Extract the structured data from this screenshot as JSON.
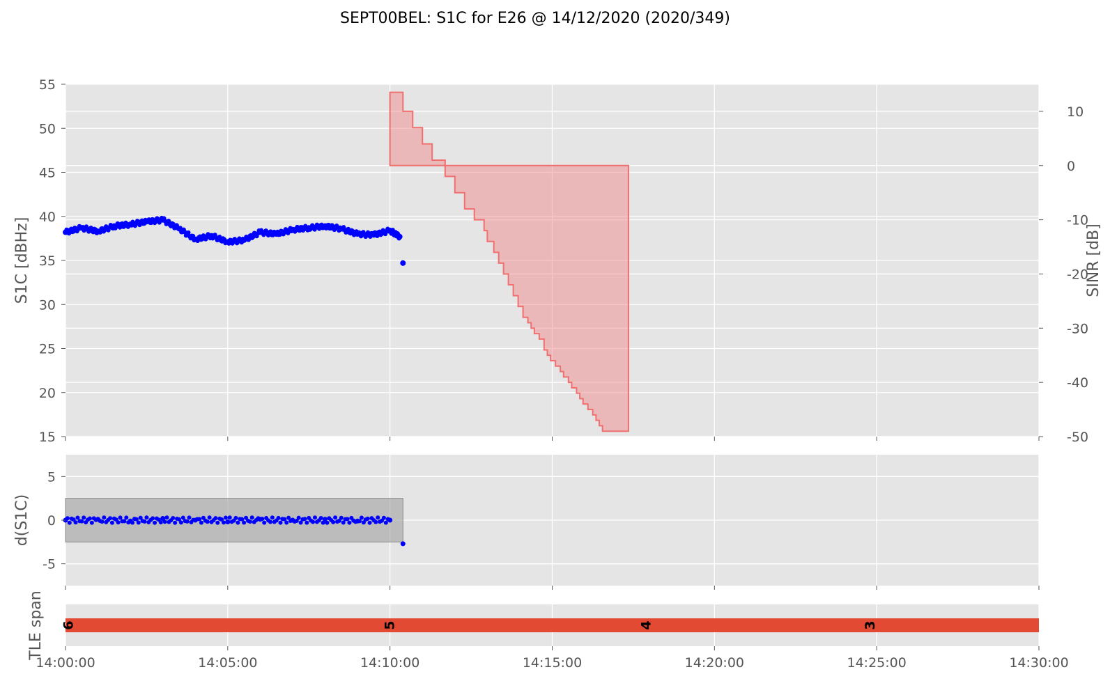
{
  "chart_data": {
    "title": "SEPT00BEL: S1C for E26 @ 14/12/2020 (2020/349)",
    "colors": {
      "series": "#0000ff",
      "sinr_fill": "#f08080",
      "sinr_edge": "#f07070",
      "tle_bar": "#e24a33",
      "band": "#a0a0a0",
      "plot_bg": "#e5e5e5"
    },
    "x_range_minutes": [
      0,
      30
    ],
    "x_tick_labels": [
      "14:00:00",
      "14:05:00",
      "14:10:00",
      "14:15:00",
      "14:20:00",
      "14:25:00",
      "14:30:00"
    ],
    "panels": [
      {
        "name": "S1C",
        "type": "scatter",
        "ylabel": "S1C [dBHz]",
        "ylim": [
          15,
          55
        ],
        "yticks": [
          15,
          20,
          25,
          30,
          35,
          40,
          45,
          50,
          55
        ],
        "x_minutes": [
          0.0,
          0.5,
          1.0,
          1.5,
          2.0,
          2.5,
          3.0,
          3.5,
          4.0,
          4.5,
          5.0,
          5.5,
          6.0,
          6.5,
          7.0,
          7.5,
          8.0,
          8.5,
          9.0,
          9.5,
          10.0,
          10.3,
          10.4
        ],
        "values": [
          38.2,
          38.7,
          38.3,
          38.9,
          39.1,
          39.4,
          39.6,
          38.6,
          37.4,
          37.8,
          37.1,
          37.3,
          38.2,
          38.0,
          38.5,
          38.7,
          38.9,
          38.6,
          38.0,
          37.9,
          38.4,
          37.7,
          34.7
        ],
        "secondary_axis": {
          "ylabel": "SINR [dB]",
          "ylim": [
            -50,
            15
          ],
          "yticks": [
            10,
            0,
            -10,
            -20,
            -30,
            -40,
            -50
          ],
          "type": "area-step",
          "steps_x_minutes": [
            10.0,
            10.4,
            10.7,
            11.0,
            11.3,
            11.7,
            12.0,
            12.3,
            12.6,
            12.9,
            13.0,
            13.2,
            13.35,
            13.5,
            13.65,
            13.8,
            13.95,
            14.1,
            14.25,
            14.35,
            14.45,
            14.6,
            14.75,
            14.85,
            14.95,
            15.1,
            15.25,
            15.35,
            15.5,
            15.6,
            15.75,
            15.85,
            15.95,
            16.1,
            16.25,
            16.35,
            16.45,
            16.55,
            16.7,
            16.85,
            17.0,
            17.15,
            17.35
          ],
          "steps_values": [
            13.5,
            10.0,
            7.0,
            4.0,
            1.0,
            -2.0,
            -5.0,
            -8.0,
            -10.0,
            -12.0,
            -14.0,
            -16.0,
            -18.0,
            -20.0,
            -22.0,
            -24.0,
            -26.0,
            -28.0,
            -29.0,
            -30.0,
            -31.0,
            -32.0,
            -34.0,
            -35.0,
            -36.0,
            -37.0,
            -38.0,
            -39.0,
            -40.0,
            -41.0,
            -42.0,
            -43.0,
            -44.0,
            -45.0,
            -46.0,
            -47.0,
            -48.0,
            -49.0,
            -49.0,
            -49.0,
            -49.0,
            -49.0,
            -49.0
          ],
          "baseline": 0
        }
      },
      {
        "name": "d(S1C)",
        "type": "scatter",
        "ylabel": "d(S1C)",
        "ylim": [
          -7.5,
          7.5
        ],
        "yticks": [
          5,
          0,
          -5
        ],
        "band": {
          "x_minutes": [
            0,
            10.4
          ],
          "ylim": [
            -2.5,
            2.5
          ]
        },
        "x_minutes": [
          0.0,
          1.0,
          2.0,
          3.0,
          4.0,
          5.0,
          6.0,
          7.0,
          8.0,
          9.0,
          10.0,
          10.4
        ],
        "values": [
          0.0,
          0.1,
          -0.1,
          0.2,
          0.0,
          -0.2,
          0.1,
          0.0,
          0.1,
          -0.1,
          0.0,
          -2.7
        ]
      },
      {
        "name": "TLE span",
        "type": "bar",
        "ylabel": "TLE span",
        "bar_x_minutes": [
          0,
          30
        ],
        "markers": [
          {
            "x_minutes": 0.1,
            "label": "6"
          },
          {
            "x_minutes": 10.0,
            "label": "5"
          },
          {
            "x_minutes": 17.9,
            "label": "4"
          },
          {
            "x_minutes": 24.8,
            "label": "3"
          }
        ]
      }
    ]
  }
}
